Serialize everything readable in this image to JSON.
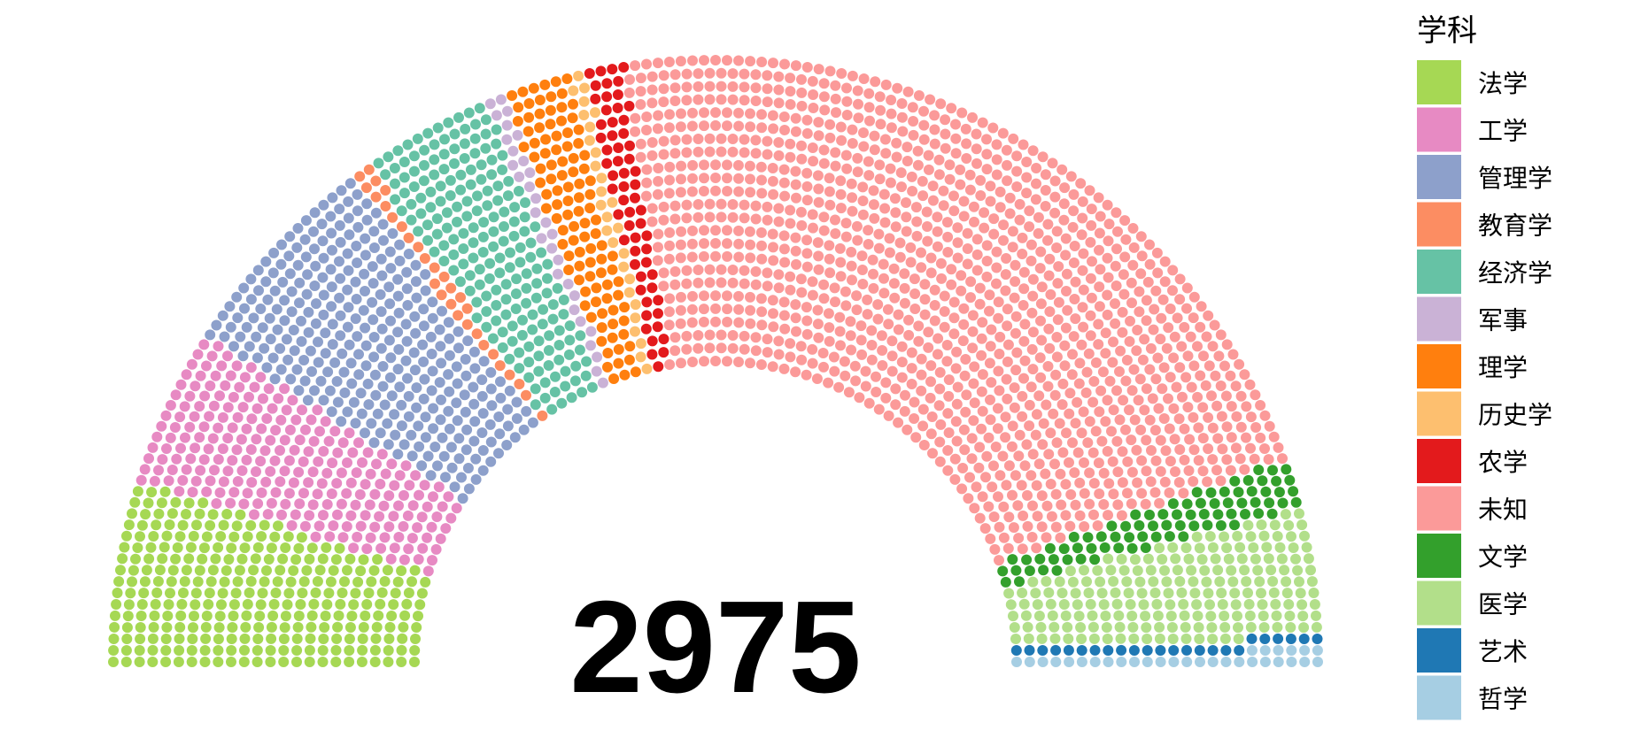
{
  "chart_data": {
    "type": "parliament",
    "total_label": "2975",
    "legend_title": "学科",
    "series": [
      {
        "name": "法学",
        "value": 296,
        "color": "#a6d854"
      },
      {
        "name": "工学",
        "value": 250,
        "color": "#e78ac3"
      },
      {
        "name": "管理学",
        "value": 340,
        "color": "#8da0cb"
      },
      {
        "name": "教育学",
        "value": 30,
        "color": "#fc8d62"
      },
      {
        "name": "经济学",
        "value": 205,
        "color": "#66c2a5"
      },
      {
        "name": "军事",
        "value": 30,
        "color": "#cab2d6"
      },
      {
        "name": "理学",
        "value": 105,
        "color": "#ff7f0e"
      },
      {
        "name": "历史学",
        "value": 28,
        "color": "#fdbf6f"
      },
      {
        "name": "农学",
        "value": 60,
        "color": "#e31a1c"
      },
      {
        "name": "未知",
        "value": 1300,
        "color": "#fb9a99"
      },
      {
        "name": "文学",
        "value": 78,
        "color": "#33a02c"
      },
      {
        "name": "医学",
        "value": 199,
        "color": "#b2df8a"
      },
      {
        "name": "艺术",
        "value": 24,
        "color": "#1f78b4"
      },
      {
        "name": "哲学",
        "value": 30,
        "color": "#a6cee3"
      }
    ]
  }
}
